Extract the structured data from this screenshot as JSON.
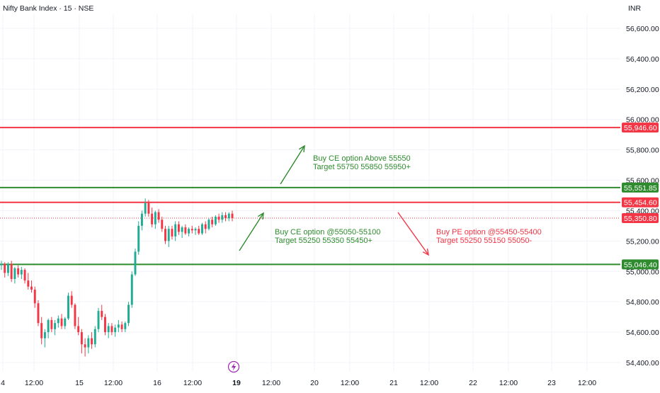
{
  "header": {
    "title": "Nifty Bank Index · 15 · NSE",
    "currency": "INR"
  },
  "colors": {
    "up": "#22ab94",
    "down": "#f23645",
    "resistance": "#f23645",
    "support": "#2e8b2e",
    "buy_text": "#2e8b2e",
    "sell_text": "#f23645",
    "current_price": "#f23645",
    "grid": "#f0f3fa"
  },
  "chart_data": {
    "type": "candlestick",
    "title": "Nifty Bank Index · 15 · NSE",
    "y_axis": {
      "min": 54380,
      "max": 56700,
      "ticks": [
        54400,
        54600,
        54800,
        55000,
        55200,
        55400,
        55600,
        55800,
        56000,
        56200,
        56400,
        56600
      ],
      "tick_labels": [
        "54,400.00",
        "54,600.00",
        "54,800.00",
        "55,000.00",
        "55,200.00",
        "55,400.00",
        "55,600.00",
        "55,800.00",
        "56,000.00",
        "56,200.00",
        "56,400.00",
        "56,600.00"
      ],
      "position": "right"
    },
    "x_axis": {
      "labels": [
        "4",
        "12:00",
        "15",
        "12:00",
        "16",
        "12:00",
        "19",
        "12:00",
        "20",
        "12:00",
        "21",
        "12:00",
        "22",
        "12:00",
        "23",
        "12:00"
      ],
      "bold_labels": [
        "19"
      ]
    },
    "price_levels": [
      {
        "value": 55946.6,
        "label": "55,946.60",
        "kind": "resistance"
      },
      {
        "value": 55551.85,
        "label": "55,551.85",
        "kind": "support"
      },
      {
        "value": 55454.6,
        "label": "55,454.60",
        "kind": "resistance"
      },
      {
        "value": 55046.4,
        "label": "55,046.40",
        "kind": "support"
      }
    ],
    "current_price": {
      "value": 55350.8,
      "label": "55,350.80"
    },
    "annotations": [
      {
        "lines": [
          "Buy CE option Above 55550",
          "Target 55750 55850 55950+"
        ],
        "kind": "buy"
      },
      {
        "lines": [
          "Buy CE option @55050-55100",
          "Target 55250 55350 55450+"
        ],
        "kind": "buy"
      },
      {
        "lines": [
          "Buy PE option @55450-55400",
          "Target 55250 55150 55050-"
        ],
        "kind": "sell"
      }
    ],
    "candles": [
      [
        55040,
        55070,
        55010,
        55050
      ],
      [
        55050,
        55060,
        54960,
        54990
      ],
      [
        54990,
        55060,
        54970,
        55050
      ],
      [
        55050,
        55070,
        54930,
        54950
      ],
      [
        54950,
        55030,
        54920,
        55020
      ],
      [
        55020,
        55040,
        54960,
        54980
      ],
      [
        54980,
        55030,
        54950,
        55010
      ],
      [
        55010,
        55020,
        54920,
        54940
      ],
      [
        54940,
        54990,
        54880,
        54900
      ],
      [
        54900,
        54940,
        54860,
        54880
      ],
      [
        54880,
        54900,
        54760,
        54790
      ],
      [
        54790,
        54810,
        54640,
        54660
      ],
      [
        54660,
        54700,
        54520,
        54560
      ],
      [
        54560,
        54620,
        54500,
        54600
      ],
      [
        54600,
        54690,
        54560,
        54680
      ],
      [
        54680,
        54700,
        54600,
        54620
      ],
      [
        54620,
        54680,
        54580,
        54660
      ],
      [
        54660,
        54710,
        54630,
        54690
      ],
      [
        54690,
        54720,
        54620,
        54640
      ],
      [
        54640,
        54700,
        54620,
        54690
      ],
      [
        54690,
        54860,
        54680,
        54840
      ],
      [
        54840,
        54870,
        54760,
        54780
      ],
      [
        54780,
        54790,
        54620,
        54640
      ],
      [
        54640,
        54700,
        54580,
        54600
      ],
      [
        54600,
        54620,
        54460,
        54520
      ],
      [
        54520,
        54560,
        54440,
        54500
      ],
      [
        54500,
        54580,
        54460,
        54560
      ],
      [
        54560,
        54600,
        54490,
        54520
      ],
      [
        54520,
        54640,
        54500,
        54620
      ],
      [
        54620,
        54760,
        54600,
        54740
      ],
      [
        54740,
        54780,
        54680,
        54700
      ],
      [
        54700,
        54720,
        54580,
        54600
      ],
      [
        54600,
        54660,
        54560,
        54640
      ],
      [
        54640,
        54660,
        54580,
        54600
      ],
      [
        54600,
        54650,
        54570,
        54630
      ],
      [
        54630,
        54680,
        54600,
        54650
      ],
      [
        54650,
        54670,
        54600,
        54620
      ],
      [
        54620,
        54670,
        54600,
        54660
      ],
      [
        54660,
        54800,
        54640,
        54780
      ],
      [
        54780,
        55000,
        54760,
        54980
      ],
      [
        54980,
        55150,
        54970,
        55130
      ],
      [
        55130,
        55330,
        55110,
        55300
      ],
      [
        55300,
        55400,
        55270,
        55380
      ],
      [
        55380,
        55480,
        55360,
        55450
      ],
      [
        55450,
        55470,
        55360,
        55380
      ],
      [
        55380,
        55420,
        55290,
        55310
      ],
      [
        55310,
        55400,
        55280,
        55390
      ],
      [
        55390,
        55410,
        55320,
        55340
      ],
      [
        55340,
        55360,
        55260,
        55280
      ],
      [
        55280,
        55300,
        55180,
        55200
      ],
      [
        55200,
        55300,
        55160,
        55280
      ],
      [
        55280,
        55300,
        55210,
        55230
      ],
      [
        55230,
        55330,
        55200,
        55310
      ],
      [
        55310,
        55330,
        55240,
        55260
      ],
      [
        55260,
        55300,
        55220,
        55290
      ],
      [
        55290,
        55310,
        55240,
        55250
      ],
      [
        55250,
        55290,
        55230,
        55280
      ],
      [
        55280,
        55300,
        55250,
        55270
      ],
      [
        55270,
        55290,
        55240,
        55280
      ],
      [
        55280,
        55300,
        55240,
        55250
      ],
      [
        55250,
        55320,
        55240,
        55310
      ],
      [
        55310,
        55330,
        55250,
        55280
      ],
      [
        55280,
        55350,
        55270,
        55340
      ],
      [
        55340,
        55360,
        55290,
        55310
      ],
      [
        55310,
        55370,
        55300,
        55360
      ],
      [
        55360,
        55380,
        55320,
        55340
      ],
      [
        55340,
        55390,
        55320,
        55370
      ],
      [
        55370,
        55390,
        55330,
        55350
      ],
      [
        55350,
        55390,
        55330,
        55380
      ],
      [
        55380,
        55400,
        55330,
        55351
      ]
    ]
  }
}
